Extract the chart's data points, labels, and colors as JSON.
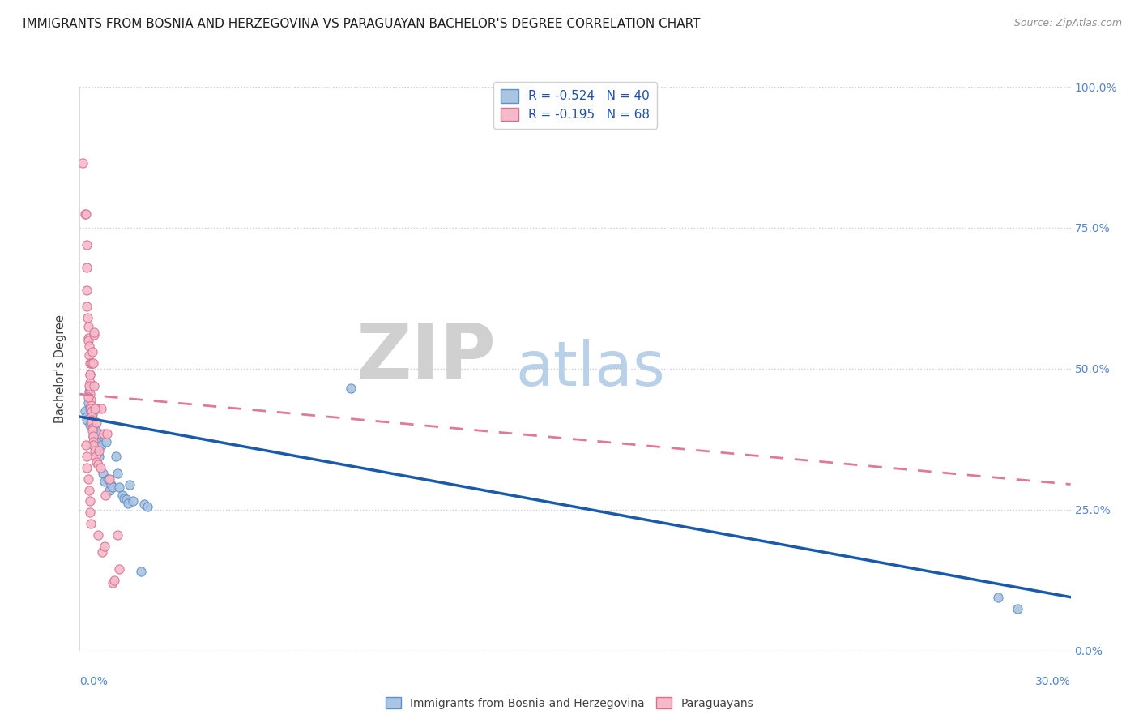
{
  "title": "IMMIGRANTS FROM BOSNIA AND HERZEGOVINA VS PARAGUAYAN BACHELOR'S DEGREE CORRELATION CHART",
  "source": "Source: ZipAtlas.com",
  "ylabel": "Bachelor's Degree",
  "right_yticks": [
    0.0,
    0.25,
    0.5,
    0.75,
    1.0
  ],
  "right_yticklabels": [
    "0.0%",
    "25.0%",
    "50.0%",
    "75.0%",
    "100.0%"
  ],
  "xmin": 0.0,
  "xmax": 0.3,
  "ymin": 0.0,
  "ymax": 1.0,
  "watermark_zip": "ZIP",
  "watermark_atlas": "atlas",
  "blue_dots": [
    [
      0.0015,
      0.425
    ],
    [
      0.002,
      0.415
    ],
    [
      0.0022,
      0.41
    ],
    [
      0.0025,
      0.44
    ],
    [
      0.0028,
      0.46
    ],
    [
      0.003,
      0.43
    ],
    [
      0.0032,
      0.4
    ],
    [
      0.0035,
      0.51
    ],
    [
      0.0038,
      0.42
    ],
    [
      0.004,
      0.38
    ],
    [
      0.0042,
      0.43
    ],
    [
      0.0045,
      0.37
    ],
    [
      0.0048,
      0.39
    ],
    [
      0.005,
      0.375
    ],
    [
      0.0055,
      0.36
    ],
    [
      0.0058,
      0.345
    ],
    [
      0.006,
      0.385
    ],
    [
      0.0065,
      0.365
    ],
    [
      0.007,
      0.315
    ],
    [
      0.0075,
      0.3
    ],
    [
      0.008,
      0.37
    ],
    [
      0.0085,
      0.305
    ],
    [
      0.009,
      0.285
    ],
    [
      0.0095,
      0.295
    ],
    [
      0.01,
      0.29
    ],
    [
      0.011,
      0.345
    ],
    [
      0.0115,
      0.315
    ],
    [
      0.012,
      0.29
    ],
    [
      0.013,
      0.275
    ],
    [
      0.0135,
      0.27
    ],
    [
      0.014,
      0.268
    ],
    [
      0.0145,
      0.262
    ],
    [
      0.015,
      0.295
    ],
    [
      0.016,
      0.265
    ],
    [
      0.0185,
      0.14
    ],
    [
      0.0195,
      0.26
    ],
    [
      0.0205,
      0.255
    ],
    [
      0.082,
      0.465
    ],
    [
      0.278,
      0.095
    ],
    [
      0.284,
      0.075
    ]
  ],
  "pink_dots": [
    [
      0.0008,
      0.865
    ],
    [
      0.0015,
      0.775
    ],
    [
      0.0018,
      0.775
    ],
    [
      0.002,
      0.72
    ],
    [
      0.002,
      0.68
    ],
    [
      0.0022,
      0.64
    ],
    [
      0.0022,
      0.61
    ],
    [
      0.0024,
      0.59
    ],
    [
      0.0025,
      0.575
    ],
    [
      0.0025,
      0.555
    ],
    [
      0.0026,
      0.55
    ],
    [
      0.0028,
      0.54
    ],
    [
      0.0028,
      0.525
    ],
    [
      0.003,
      0.51
    ],
    [
      0.003,
      0.49
    ],
    [
      0.003,
      0.475
    ],
    [
      0.0032,
      0.465
    ],
    [
      0.0032,
      0.455
    ],
    [
      0.0033,
      0.445
    ],
    [
      0.0034,
      0.435
    ],
    [
      0.0034,
      0.43
    ],
    [
      0.0035,
      0.425
    ],
    [
      0.0035,
      0.415
    ],
    [
      0.0036,
      0.41
    ],
    [
      0.0036,
      0.405
    ],
    [
      0.0038,
      0.395
    ],
    [
      0.0038,
      0.39
    ],
    [
      0.004,
      0.38
    ],
    [
      0.004,
      0.37
    ],
    [
      0.004,
      0.365
    ],
    [
      0.0042,
      0.56
    ],
    [
      0.0044,
      0.565
    ],
    [
      0.0046,
      0.355
    ],
    [
      0.0048,
      0.345
    ],
    [
      0.005,
      0.335
    ],
    [
      0.0052,
      0.43
    ],
    [
      0.0055,
      0.33
    ],
    [
      0.0055,
      0.205
    ],
    [
      0.0058,
      0.355
    ],
    [
      0.0062,
      0.325
    ],
    [
      0.0065,
      0.43
    ],
    [
      0.0068,
      0.175
    ],
    [
      0.0072,
      0.385
    ],
    [
      0.0075,
      0.185
    ],
    [
      0.0078,
      0.275
    ],
    [
      0.0082,
      0.385
    ],
    [
      0.009,
      0.305
    ],
    [
      0.01,
      0.12
    ],
    [
      0.0105,
      0.125
    ],
    [
      0.0115,
      0.205
    ],
    [
      0.012,
      0.145
    ],
    [
      0.0025,
      0.45
    ],
    [
      0.0028,
      0.47
    ],
    [
      0.003,
      0.49
    ],
    [
      0.0035,
      0.51
    ],
    [
      0.0038,
      0.53
    ],
    [
      0.004,
      0.51
    ],
    [
      0.0043,
      0.47
    ],
    [
      0.0046,
      0.43
    ],
    [
      0.005,
      0.405
    ],
    [
      0.0018,
      0.365
    ],
    [
      0.002,
      0.345
    ],
    [
      0.0022,
      0.325
    ],
    [
      0.0025,
      0.305
    ],
    [
      0.0028,
      0.285
    ],
    [
      0.003,
      0.265
    ],
    [
      0.0032,
      0.245
    ],
    [
      0.0034,
      0.225
    ]
  ],
  "blue_line_x": [
    0.0,
    0.3
  ],
  "blue_line_y": [
    0.415,
    0.095
  ],
  "pink_line_x": [
    0.0,
    0.3
  ],
  "pink_line_y": [
    0.455,
    0.295
  ],
  "dot_size": 65,
  "blue_dot_color": "#aac4e2",
  "blue_dot_edge": "#6090c8",
  "pink_dot_color": "#f5baca",
  "pink_dot_edge": "#d87090",
  "blue_line_color": "#1a5aaa",
  "pink_line_color": "#e07898",
  "grid_color": "#c8c8d8",
  "background_color": "#ffffff",
  "title_fontsize": 11,
  "axis_color": "#5585c8",
  "legend_r_color": "#2050b0",
  "legend_n_color": "#2050b0"
}
